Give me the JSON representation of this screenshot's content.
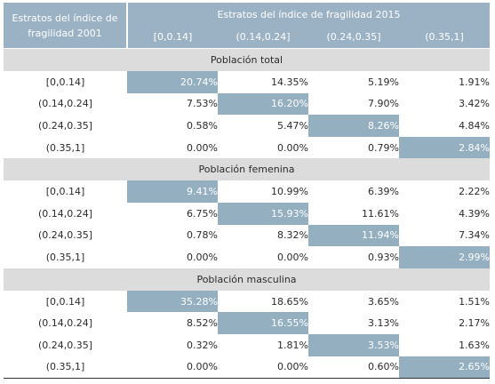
{
  "header": {
    "row_label": "Estratos del índice de fragilidad 2001",
    "group_label": "Estratos del índice de fragilidad 2015",
    "columns": [
      "[0,0.14]",
      "(0.14,0.24]",
      "(0.24,0.35]",
      "(0.35,1]"
    ]
  },
  "sections": [
    {
      "title": "Población total",
      "rows": [
        {
          "label": "[0,0.14]",
          "values": [
            "20.74%",
            "14.35%",
            "5.19%",
            "1.91%"
          ]
        },
        {
          "label": "(0.14,0.24]",
          "values": [
            "7.53%",
            "16.20%",
            "7.90%",
            "3.42%"
          ]
        },
        {
          "label": "(0.24,0.35]",
          "values": [
            "0.58%",
            "5.47%",
            "8.26%",
            "4.84%"
          ]
        },
        {
          "label": "(0.35,1]",
          "values": [
            "0.00%",
            "0.00%",
            "0.79%",
            "2.84%"
          ]
        }
      ]
    },
    {
      "title": "Población femenina",
      "rows": [
        {
          "label": "[0,0.14]",
          "values": [
            "9.41%",
            "10.99%",
            "6.39%",
            "2.22%"
          ]
        },
        {
          "label": "(0.14,0.24]",
          "values": [
            "6.75%",
            "15.93%",
            "11.61%",
            "4.39%"
          ]
        },
        {
          "label": "(0.24,0.35]",
          "values": [
            "0.78%",
            "8.32%",
            "11.94%",
            "7.34%"
          ]
        },
        {
          "label": "(0.35,1]",
          "values": [
            "0.00%",
            "0.00%",
            "0.93%",
            "2.99%"
          ]
        }
      ]
    },
    {
      "title": "Población masculina",
      "rows": [
        {
          "label": "[0,0.14]",
          "values": [
            "35.28%",
            "18.65%",
            "3.65%",
            "1.51%"
          ]
        },
        {
          "label": "(0.14,0.24]",
          "values": [
            "8.52%",
            "16.55%",
            "3.13%",
            "2.17%"
          ]
        },
        {
          "label": "(0.24,0.35]",
          "values": [
            "0.32%",
            "1.81%",
            "3.53%",
            "1.63%"
          ]
        },
        {
          "label": "(0.35,1]",
          "values": [
            "0.00%",
            "0.00%",
            "0.60%",
            "2.65%"
          ]
        }
      ]
    }
  ],
  "colors": {
    "header_bg": "#9bb2c4",
    "highlight_bg": "#94afc0",
    "section_bg": "#dcdcdc"
  }
}
